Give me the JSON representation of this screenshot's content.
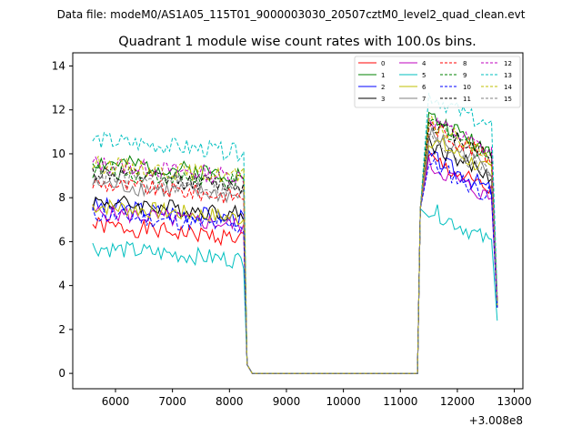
{
  "chart_data": {
    "type": "line",
    "suptitle": "Data file: modeM0/AS1A05_115T01_9000003030_20507cztM0_level2_quad_clean.evt",
    "title": "Quadrant 1 module wise count rates with 100.0s bins.",
    "xlabel": "",
    "ylabel": "",
    "x_offset_label": "+3.008e8",
    "xlim": [
      5250,
      13150
    ],
    "ylim": [
      -0.7,
      14.6
    ],
    "x_ticks": [
      6000,
      7000,
      8000,
      9000,
      10000,
      11000,
      12000,
      13000
    ],
    "x_tick_labels": [
      "6000",
      "7000",
      "8000",
      "9000",
      "10000",
      "11000",
      "12000",
      "13000"
    ],
    "y_ticks": [
      0,
      2,
      4,
      6,
      8,
      10,
      12,
      14
    ],
    "y_tick_labels": [
      "0",
      "2",
      "4",
      "6",
      "8",
      "10",
      "12",
      "14"
    ],
    "legend_position": "top-right",
    "segments": [
      {
        "x_start": 5600,
        "x_end": 8250
      },
      {
        "x_start": 8250,
        "x_end": 8400
      },
      {
        "x_start": 8400,
        "x_end": 11300
      },
      {
        "x_start": 11300,
        "x_end": 11500
      },
      {
        "x_start": 11500,
        "x_end": 12700
      }
    ],
    "series": [
      {
        "name": "0",
        "color": "#ff0000",
        "dash": "solid",
        "level1": 6.4,
        "level2": 8.9,
        "end": 3.3
      },
      {
        "name": "1",
        "color": "#008000",
        "dash": "solid",
        "level1": 9.3,
        "level2": 10.8,
        "end": 3.0
      },
      {
        "name": "2",
        "color": "#0000ff",
        "dash": "solid",
        "level1": 7.3,
        "level2": 9.0,
        "end": 3.2
      },
      {
        "name": "3",
        "color": "#000000",
        "dash": "solid",
        "level1": 7.5,
        "level2": 9.6,
        "end": 3.0
      },
      {
        "name": "4",
        "color": "#bf00bf",
        "dash": "solid",
        "level1": 7.0,
        "level2": 8.6,
        "end": 3.0
      },
      {
        "name": "5",
        "color": "#00bfbf",
        "dash": "solid",
        "level1": 5.4,
        "level2": 6.6,
        "end": 2.4
      },
      {
        "name": "6",
        "color": "#bfbf00",
        "dash": "solid",
        "level1": 7.3,
        "level2": 9.8,
        "end": 3.1
      },
      {
        "name": "7",
        "color": "#808080",
        "dash": "solid",
        "level1": 8.3,
        "level2": 10.0,
        "end": 3.2
      },
      {
        "name": "8",
        "color": "#ff0000",
        "dash": "dashed",
        "level1": 8.3,
        "level2": 10.4,
        "end": 3.4
      },
      {
        "name": "9",
        "color": "#008000",
        "dash": "dashed",
        "level1": 8.9,
        "level2": 10.6,
        "end": 3.3
      },
      {
        "name": "10",
        "color": "#0000ff",
        "dash": "dashed",
        "level1": 6.9,
        "level2": 8.7,
        "end": 3.0
      },
      {
        "name": "11",
        "color": "#000000",
        "dash": "dashed",
        "level1": 8.8,
        "level2": 10.6,
        "end": 3.3
      },
      {
        "name": "12",
        "color": "#bf00bf",
        "dash": "dashed",
        "level1": 9.2,
        "level2": 10.7,
        "end": 3.4
      },
      {
        "name": "13",
        "color": "#00bfbf",
        "dash": "dashed",
        "level1": 10.3,
        "level2": 11.8,
        "end": 3.6
      },
      {
        "name": "14",
        "color": "#bfbf00",
        "dash": "dashed",
        "level1": 9.2,
        "level2": 10.5,
        "end": 3.3
      },
      {
        "name": "15",
        "color": "#808080",
        "dash": "dashed",
        "level1": 8.6,
        "level2": 9.8,
        "end": 3.2
      }
    ]
  }
}
